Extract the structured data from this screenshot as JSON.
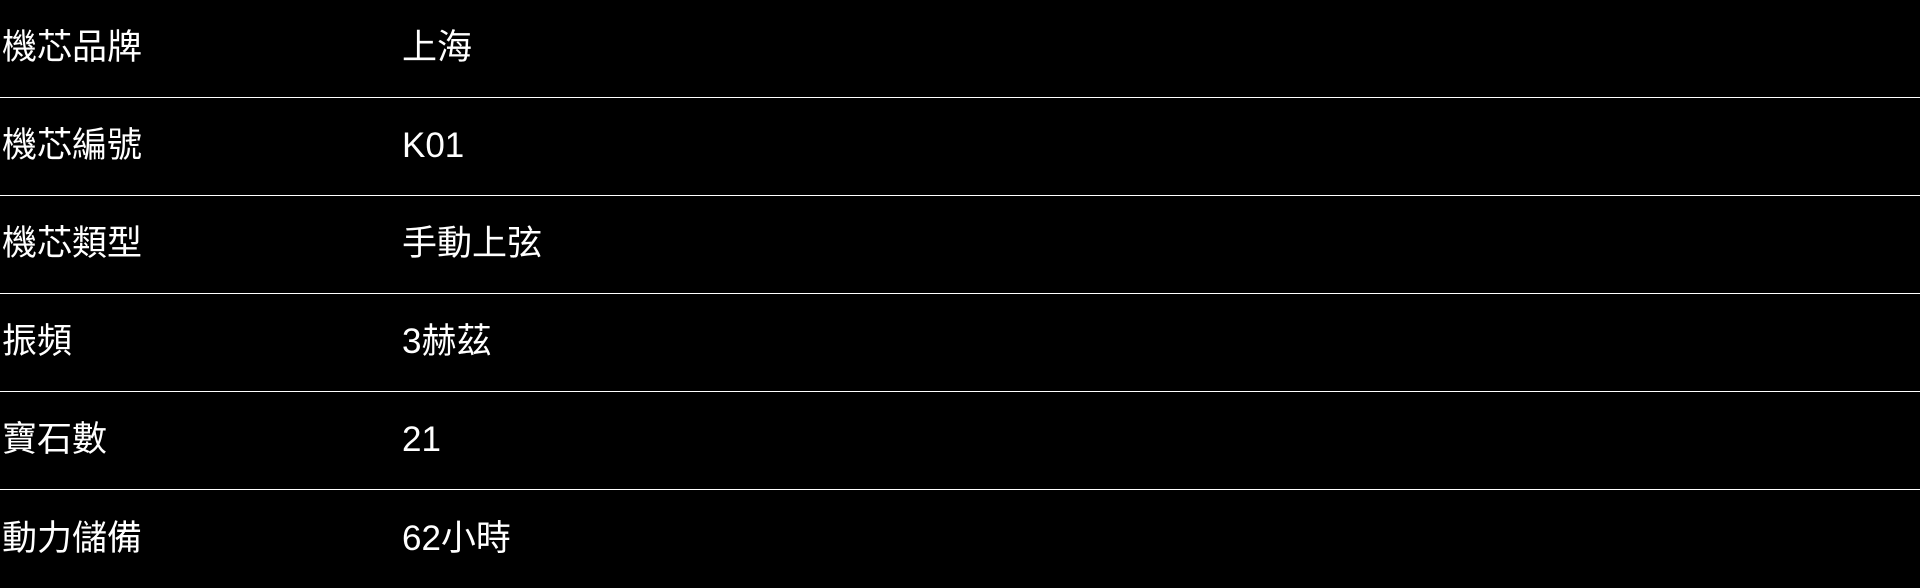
{
  "colors": {
    "background": "#000000",
    "text": "#ffffff",
    "divider": "#ffffff"
  },
  "spec_table": {
    "rows": [
      {
        "label": "機芯品牌",
        "value": "上海"
      },
      {
        "label": "機芯編號",
        "value": "K01"
      },
      {
        "label": "機芯類型",
        "value": "手動上弦"
      },
      {
        "label": "振頻",
        "value": "3赫茲"
      },
      {
        "label": "寶石數",
        "value": "21"
      },
      {
        "label": "動力儲備",
        "value": "62小時"
      }
    ]
  }
}
